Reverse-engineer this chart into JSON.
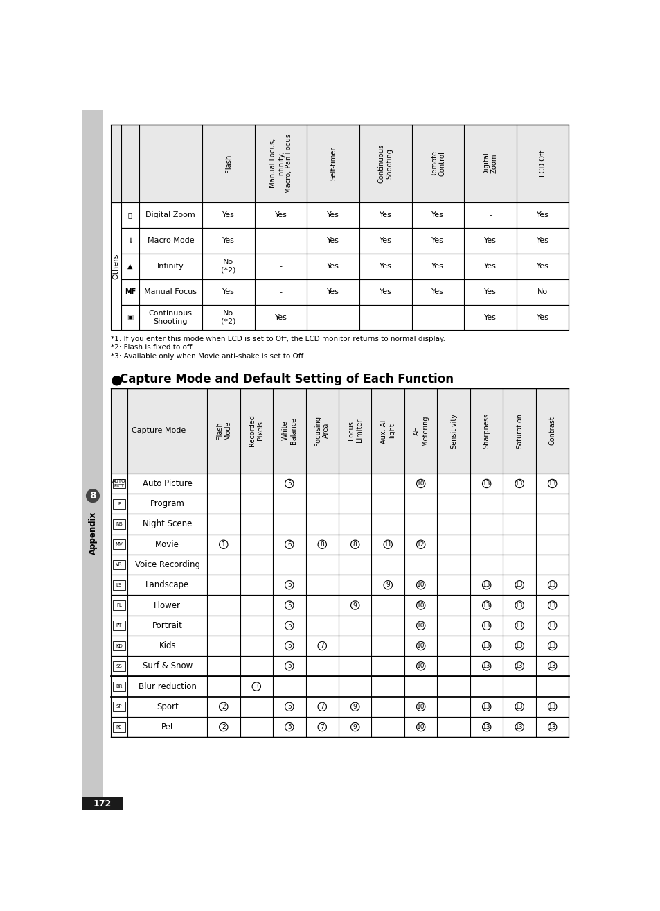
{
  "page_bg": "#ffffff",
  "sidebar_color": "#c8c8c8",
  "table_header_bg": "#e8e8e8",
  "top_table": {
    "col_headers": [
      "Flash",
      "Manual Focus,\nInfinity,\nMacro, Pan Focus",
      "Self-timer",
      "Continuous\nShooting",
      "Remote\nControl",
      "Digital\nZoom",
      "LCD Off"
    ],
    "rows": [
      {
        "icon": "⌕",
        "label": "Digital Zoom",
        "vals": [
          "Yes",
          "Yes",
          "Yes",
          "Yes",
          "Yes",
          "-",
          "Yes"
        ]
      },
      {
        "icon": "⇓",
        "label": "Macro Mode",
        "vals": [
          "Yes",
          "-",
          "Yes",
          "Yes",
          "Yes",
          "Yes",
          "Yes"
        ]
      },
      {
        "icon": "▲",
        "label": "Infinity",
        "vals": [
          "No\n(*2)",
          "-",
          "Yes",
          "Yes",
          "Yes",
          "Yes",
          "Yes"
        ]
      },
      {
        "icon": "MF",
        "label": "Manual Focus",
        "vals": [
          "Yes",
          "-",
          "Yes",
          "Yes",
          "Yes",
          "Yes",
          "No"
        ]
      },
      {
        "icon": "▣",
        "label": "Continuous\nShooting",
        "vals": [
          "No\n(*2)",
          "Yes",
          "-",
          "-",
          "-",
          "Yes",
          "Yes"
        ]
      }
    ]
  },
  "footnotes": [
    "*1: If you enter this mode when LCD is set to Off, the LCD monitor returns to normal display.",
    "*2: Flash is fixed to off.",
    "*3: Available only when Movie anti-shake is set to Off."
  ],
  "section_title": "Capture Mode and Default Setting of Each Function",
  "bottom_table": {
    "col_headers": [
      "Flash\nMode",
      "Recorded\nPixels",
      "White\nBalance",
      "Focusing\nArea",
      "Focus\nLimiter",
      "Aux. AF\nlight",
      "AE\nMetering",
      "Sensitivity",
      "Sharpness",
      "Saturation",
      "Contrast"
    ],
    "rows": [
      {
        "icon": "AUTO\nPICT",
        "label": "Auto Picture",
        "vals": [
          "",
          "",
          "5",
          "",
          "",
          "",
          "10",
          "",
          "13",
          "13",
          "13"
        ]
      },
      {
        "icon": "P",
        "label": "Program",
        "vals": [
          "",
          "",
          "",
          "",
          "",
          "",
          "",
          "",
          "",
          "",
          ""
        ]
      },
      {
        "icon": "NS",
        "label": "Night Scene",
        "vals": [
          "",
          "",
          "",
          "",
          "",
          "",
          "",
          "",
          "",
          "",
          ""
        ]
      },
      {
        "icon": "MV",
        "label": "Movie",
        "vals": [
          "1",
          "",
          "6",
          "8",
          "8",
          "11",
          "12",
          "",
          "",
          "",
          ""
        ]
      },
      {
        "icon": "VR",
        "label": "Voice Recording",
        "vals": [
          "",
          "",
          "",
          "",
          "",
          "",
          "",
          "",
          "",
          "",
          ""
        ]
      },
      {
        "icon": "LS",
        "label": "Landscape",
        "vals": [
          "",
          "",
          "5",
          "",
          "",
          "9",
          "10",
          "",
          "13",
          "13",
          "13"
        ]
      },
      {
        "icon": "FL",
        "label": "Flower",
        "vals": [
          "",
          "",
          "5",
          "",
          "9",
          "",
          "10",
          "",
          "13",
          "13",
          "13"
        ]
      },
      {
        "icon": "PT",
        "label": "Portrait",
        "vals": [
          "",
          "",
          "5",
          "",
          "",
          "",
          "10",
          "",
          "13",
          "13",
          "13"
        ]
      },
      {
        "icon": "KD",
        "label": "Kids",
        "vals": [
          "",
          "",
          "5",
          "7",
          "",
          "",
          "10",
          "",
          "13",
          "13",
          "13"
        ]
      },
      {
        "icon": "SS",
        "label": "Surf & Snow",
        "vals": [
          "",
          "",
          "5",
          "",
          "",
          "",
          "10",
          "",
          "13",
          "13",
          "13"
        ]
      },
      {
        "icon": "BR",
        "label": "Blur reduction",
        "vals": [
          "",
          "3",
          "",
          "",
          "",
          "",
          "",
          "",
          "",
          "",
          ""
        ]
      },
      {
        "icon": "SP",
        "label": "Sport",
        "vals": [
          "2",
          "",
          "5",
          "7",
          "9",
          "",
          "10",
          "",
          "13",
          "13",
          "13"
        ]
      },
      {
        "icon": "PE",
        "label": "Pet",
        "vals": [
          "2",
          "",
          "5",
          "7",
          "9",
          "",
          "10",
          "",
          "13",
          "13",
          "13"
        ]
      }
    ]
  }
}
